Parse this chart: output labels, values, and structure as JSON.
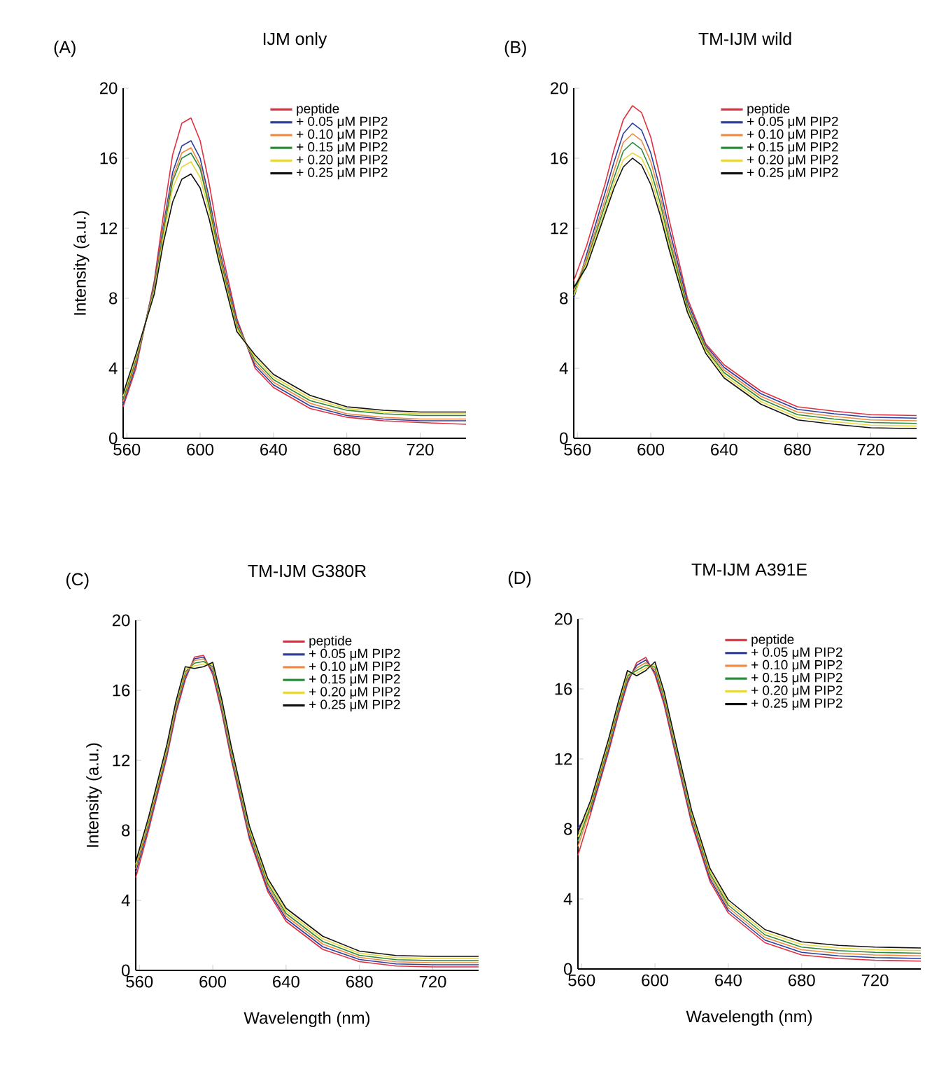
{
  "chart_data": [
    {
      "type": "line",
      "title": "IJM only",
      "annotations": [
        "(A)"
      ],
      "ylabel": "Intensity (a.u.)",
      "legend": "top right",
      "x": [
        558,
        565,
        575,
        580,
        585,
        590,
        595,
        600,
        605,
        610,
        620,
        630,
        640,
        660,
        680,
        700,
        720,
        745
      ],
      "xlim": [
        558,
        745
      ],
      "ylim": [
        0,
        20
      ],
      "xticks": [
        560,
        600,
        640,
        680,
        720
      ],
      "yticks": [
        0,
        4,
        8,
        12,
        16,
        20
      ],
      "series": [
        {
          "name": "peptide",
          "color": "#e03040",
          "values": [
            1.8,
            4.0,
            9.0,
            12.8,
            16.2,
            18.0,
            18.3,
            17.0,
            14.5,
            11.5,
            6.85,
            4.0,
            2.9,
            1.7,
            1.2,
            1.0,
            0.9,
            0.8
          ]
        },
        {
          "name": "+ 0.05 μM PIP2",
          "color": "#2a3fa0",
          "values": [
            1.95,
            4.2,
            8.85,
            12.2,
            15.2,
            16.7,
            17.0,
            16.0,
            13.7,
            11.0,
            6.7,
            4.15,
            3.05,
            1.85,
            1.3,
            1.1,
            1.0,
            1.0
          ]
        },
        {
          "name": "+ 0.10 μM PIP2",
          "color": "#f08a40",
          "values": [
            2.1,
            4.35,
            8.7,
            12.0,
            14.9,
            16.3,
            16.6,
            15.6,
            13.4,
            10.8,
            6.55,
            4.3,
            3.2,
            2.0,
            1.4,
            1.2,
            1.1,
            1.1
          ]
        },
        {
          "name": "+ 0.15 μM PIP2",
          "color": "#2a8a3a",
          "values": [
            2.25,
            4.5,
            8.55,
            11.8,
            14.7,
            16.0,
            16.3,
            15.4,
            13.2,
            10.6,
            6.4,
            4.45,
            3.35,
            2.15,
            1.6,
            1.4,
            1.3,
            1.3
          ]
        },
        {
          "name": "+ 0.20 μM PIP2",
          "color": "#e8d840",
          "values": [
            2.4,
            4.65,
            8.4,
            11.5,
            14.3,
            15.5,
            15.8,
            14.9,
            12.9,
            10.4,
            6.25,
            4.6,
            3.5,
            2.3,
            1.7,
            1.5,
            1.4,
            1.4
          ]
        },
        {
          "name": "+ 0.25 μM PIP2",
          "color": "#111111",
          "values": [
            2.55,
            4.8,
            8.25,
            11.2,
            13.5,
            14.8,
            15.1,
            14.3,
            12.5,
            10.2,
            6.1,
            4.75,
            3.65,
            2.45,
            1.8,
            1.6,
            1.5,
            1.5
          ]
        }
      ]
    },
    {
      "type": "line",
      "title": "TM-IJM wild",
      "annotations": [
        "(B)"
      ],
      "legend": "top right",
      "x": [
        558,
        565,
        575,
        580,
        585,
        590,
        595,
        600,
        605,
        610,
        620,
        630,
        640,
        660,
        680,
        700,
        720,
        745
      ],
      "xlim": [
        558,
        745
      ],
      "ylim": [
        0,
        20
      ],
      "xticks": [
        560,
        600,
        640,
        680,
        720
      ],
      "yticks": [
        0,
        4,
        8,
        12,
        16,
        20
      ],
      "series": [
        {
          "name": "peptide",
          "color": "#e03040",
          "values": [
            9.0,
            11.0,
            14.5,
            16.5,
            18.2,
            19.0,
            18.6,
            17.2,
            15.0,
            12.5,
            8.0,
            5.4,
            4.2,
            2.7,
            1.8,
            1.55,
            1.35,
            1.3
          ]
        },
        {
          "name": "+ 0.05 μM PIP2",
          "color": "#2a3fa0",
          "values": [
            8.0,
            10.5,
            14.0,
            15.8,
            17.4,
            18.0,
            17.6,
            16.3,
            14.3,
            12.0,
            7.8,
            5.3,
            4.05,
            2.55,
            1.65,
            1.4,
            1.2,
            1.15
          ]
        },
        {
          "name": "+ 0.10 μM PIP2",
          "color": "#f08a40",
          "values": [
            8.45,
            10.3,
            13.6,
            15.3,
            16.9,
            17.4,
            17.0,
            15.8,
            13.9,
            11.6,
            7.6,
            5.2,
            3.9,
            2.4,
            1.5,
            1.25,
            1.05,
            1.0
          ]
        },
        {
          "name": "+ 0.15 μM PIP2",
          "color": "#2a8a3a",
          "values": [
            8.3,
            10.1,
            13.3,
            14.9,
            16.4,
            16.9,
            16.5,
            15.3,
            13.5,
            11.3,
            7.5,
            5.1,
            3.75,
            2.25,
            1.35,
            1.1,
            0.9,
            0.85
          ]
        },
        {
          "name": "+ 0.20 μM PIP2",
          "color": "#e8d840",
          "values": [
            8.15,
            10.0,
            13.0,
            14.6,
            15.9,
            16.3,
            16.0,
            14.9,
            13.1,
            11.0,
            7.3,
            5.0,
            3.6,
            2.1,
            1.2,
            0.95,
            0.75,
            0.7
          ]
        },
        {
          "name": "+ 0.25 μM PIP2",
          "color": "#111111",
          "values": [
            8.6,
            9.8,
            12.8,
            14.3,
            15.5,
            16.0,
            15.6,
            14.5,
            12.8,
            10.8,
            7.2,
            4.85,
            3.45,
            1.95,
            1.05,
            0.8,
            0.6,
            0.55
          ]
        }
      ]
    },
    {
      "type": "line",
      "title": "TM-IJM G380R",
      "annotations": [
        "(C)"
      ],
      "xlabel": "Wavelength (nm)",
      "ylabel": "Intensity (a.u.)",
      "legend": "top right",
      "x": [
        558,
        565,
        575,
        580,
        585,
        590,
        595,
        600,
        605,
        610,
        620,
        630,
        640,
        660,
        680,
        700,
        720,
        745
      ],
      "xlim": [
        558,
        745
      ],
      "ylim": [
        0,
        20
      ],
      "xticks": [
        560,
        600,
        640,
        680,
        720
      ],
      "yticks": [
        0,
        4,
        8,
        12,
        16,
        20
      ],
      "series": [
        {
          "name": "peptide",
          "color": "#e03040",
          "values": [
            5.3,
            8.0,
            12.2,
            14.7,
            16.6,
            17.9,
            18.0,
            16.9,
            14.7,
            12.1,
            7.5,
            4.5,
            2.8,
            1.2,
            0.5,
            0.25,
            0.2,
            0.2
          ]
        },
        {
          "name": "+ 0.05 μM PIP2",
          "color": "#2a3fa0",
          "values": [
            5.6,
            8.2,
            12.35,
            14.85,
            16.75,
            17.8,
            17.9,
            17.05,
            14.85,
            12.25,
            7.65,
            4.65,
            2.95,
            1.35,
            0.62,
            0.37,
            0.32,
            0.32
          ]
        },
        {
          "name": "+ 0.10 μM PIP2",
          "color": "#f08a40",
          "values": [
            5.8,
            8.35,
            12.5,
            15.0,
            16.9,
            17.7,
            17.8,
            17.2,
            15.0,
            12.4,
            7.8,
            4.8,
            3.1,
            1.5,
            0.74,
            0.49,
            0.44,
            0.44
          ]
        },
        {
          "name": "+ 0.15 μM PIP2",
          "color": "#2a8a3a",
          "values": [
            5.95,
            8.5,
            12.65,
            15.15,
            17.05,
            17.55,
            17.65,
            17.35,
            15.15,
            12.55,
            7.95,
            4.95,
            3.25,
            1.65,
            0.86,
            0.61,
            0.56,
            0.56
          ]
        },
        {
          "name": "+ 0.20 μM PIP2",
          "color": "#e8d840",
          "values": [
            6.05,
            8.6,
            12.75,
            15.25,
            17.2,
            17.4,
            17.5,
            17.5,
            15.3,
            12.7,
            8.1,
            5.1,
            3.4,
            1.8,
            0.98,
            0.73,
            0.68,
            0.68
          ]
        },
        {
          "name": "+ 0.25 μM PIP2",
          "color": "#111111",
          "values": [
            6.2,
            8.75,
            12.9,
            15.4,
            17.35,
            17.25,
            17.35,
            17.6,
            15.45,
            12.85,
            8.25,
            5.25,
            3.55,
            1.95,
            1.1,
            0.85,
            0.8,
            0.8
          ]
        }
      ]
    },
    {
      "type": "line",
      "title": "TM-IJM A391E",
      "annotations": [
        "(D)"
      ],
      "xlabel": "Wavelength (nm)",
      "legend": "top right",
      "x": [
        558,
        565,
        575,
        580,
        585,
        590,
        595,
        600,
        605,
        610,
        620,
        630,
        640,
        660,
        680,
        700,
        720,
        745
      ],
      "xlim": [
        558,
        745
      ],
      "ylim": [
        0,
        20
      ],
      "xticks": [
        560,
        600,
        640,
        680,
        720
      ],
      "yticks": [
        0,
        4,
        8,
        12,
        16,
        20
      ],
      "series": [
        {
          "name": "peptide",
          "color": "#e03040",
          "values": [
            6.5,
            8.9,
            12.5,
            14.5,
            16.3,
            17.5,
            17.8,
            16.8,
            15.1,
            12.8,
            8.3,
            5.0,
            3.2,
            1.5,
            0.8,
            0.6,
            0.5,
            0.45
          ]
        },
        {
          "name": "+ 0.05 μM PIP2",
          "color": "#2a3fa0",
          "values": [
            8.05,
            9.05,
            12.65,
            14.65,
            16.45,
            17.35,
            17.65,
            16.95,
            15.25,
            12.95,
            8.45,
            5.15,
            3.35,
            1.65,
            0.95,
            0.75,
            0.65,
            0.6
          ]
        },
        {
          "name": "+ 0.10 μM PIP2",
          "color": "#f08a40",
          "values": [
            7.0,
            9.2,
            12.8,
            14.8,
            16.6,
            17.2,
            17.5,
            17.1,
            15.4,
            13.1,
            8.6,
            5.3,
            3.5,
            1.8,
            1.1,
            0.9,
            0.8,
            0.75
          ]
        },
        {
          "name": "+ 0.15 μM PIP2",
          "color": "#2a8a3a",
          "values": [
            7.3,
            9.35,
            12.95,
            14.95,
            16.75,
            17.05,
            17.35,
            17.25,
            15.55,
            13.25,
            8.75,
            5.45,
            3.65,
            1.95,
            1.25,
            1.05,
            0.95,
            0.9
          ]
        },
        {
          "name": "+ 0.20 μM PIP2",
          "color": "#e8d840",
          "values": [
            7.55,
            9.5,
            13.1,
            15.1,
            16.9,
            16.9,
            17.2,
            17.4,
            15.7,
            13.4,
            8.9,
            5.6,
            3.8,
            2.1,
            1.4,
            1.2,
            1.1,
            1.05
          ]
        },
        {
          "name": "+ 0.25 μM PIP2",
          "color": "#111111",
          "values": [
            7.8,
            9.65,
            13.25,
            15.25,
            17.05,
            16.75,
            17.05,
            17.55,
            15.85,
            13.55,
            9.05,
            5.75,
            3.95,
            2.25,
            1.55,
            1.35,
            1.25,
            1.2
          ]
        }
      ]
    }
  ]
}
